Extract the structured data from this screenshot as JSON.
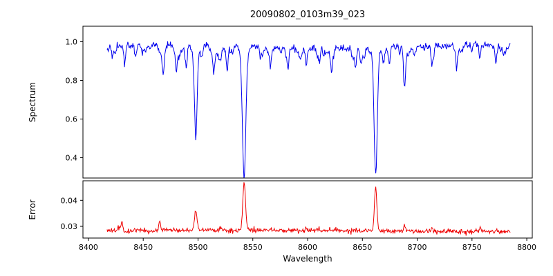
{
  "chart_data": {
    "type": "line",
    "title": "20090802_0103m39_023",
    "xlabel": "Wavelength",
    "xlim": [
      8395,
      8805
    ],
    "x_data_range": [
      8417,
      8785
    ],
    "xticks": [
      8400,
      8450,
      8500,
      8550,
      8600,
      8650,
      8700,
      8750,
      8800
    ],
    "xtick_labels": [
      "8400",
      "8450",
      "8500",
      "8550",
      "8600",
      "8650",
      "8700",
      "8750",
      "8800"
    ],
    "grid": false,
    "legend": "none",
    "panels": [
      {
        "name": "spectrum",
        "ylabel": "Spectrum",
        "ylim": [
          0.295,
          1.08
        ],
        "yticks": [
          0.4,
          0.6,
          0.8,
          1.0
        ],
        "ytick_labels": [
          "0.4",
          "0.6",
          "0.8",
          "1.0"
        ],
        "line_color": "#0000ee",
        "continuum": 0.975,
        "noise_sigma": 0.009,
        "weak_lines": {
          "count": 90,
          "depth_min": 0.005,
          "depth_max": 0.055,
          "sigma_min": 0.5,
          "sigma_max": 1.5
        },
        "absorption_lines": [
          {
            "center": 8424.5,
            "depth": 0.05,
            "sigma": 0.7
          },
          {
            "center": 8433.0,
            "depth": 0.1,
            "sigma": 0.8
          },
          {
            "center": 8443.0,
            "depth": 0.06,
            "sigma": 0.7
          },
          {
            "center": 8452.0,
            "depth": 0.05,
            "sigma": 0.7
          },
          {
            "center": 8468.5,
            "depth": 0.09,
            "sigma": 0.9
          },
          {
            "center": 8480.0,
            "depth": 0.05,
            "sigma": 0.7
          },
          {
            "center": 8498.0,
            "depth": 0.45,
            "sigma": 1.3
          },
          {
            "center": 8514.1,
            "depth": 0.09,
            "sigma": 0.8
          },
          {
            "center": 8526.7,
            "depth": 0.07,
            "sigma": 0.7
          },
          {
            "center": 8542.1,
            "depth": 0.635,
            "sigma": 1.6
          },
          {
            "center": 8556.8,
            "depth": 0.05,
            "sigma": 0.7
          },
          {
            "center": 8582.3,
            "depth": 0.08,
            "sigma": 0.8
          },
          {
            "center": 8598.8,
            "depth": 0.1,
            "sigma": 0.8
          },
          {
            "center": 8611.0,
            "depth": 0.06,
            "sigma": 0.7
          },
          {
            "center": 8621.6,
            "depth": 0.08,
            "sigma": 0.8
          },
          {
            "center": 8648.5,
            "depth": 0.06,
            "sigma": 0.7
          },
          {
            "center": 8662.1,
            "depth": 0.59,
            "sigma": 1.5
          },
          {
            "center": 8674.8,
            "depth": 0.07,
            "sigma": 0.7
          },
          {
            "center": 8688.6,
            "depth": 0.19,
            "sigma": 0.9
          },
          {
            "center": 8713.2,
            "depth": 0.08,
            "sigma": 0.8
          },
          {
            "center": 8736.0,
            "depth": 0.07,
            "sigma": 0.8
          },
          {
            "center": 8757.1,
            "depth": 0.07,
            "sigma": 0.7
          },
          {
            "center": 8772.0,
            "depth": 0.05,
            "sigma": 0.7
          }
        ]
      },
      {
        "name": "error",
        "ylabel": "Error",
        "ylim": [
          0.0255,
          0.0475
        ],
        "yticks": [
          0.03,
          0.04
        ],
        "ytick_labels": [
          "0.03",
          "0.04"
        ],
        "line_color": "#ee0000",
        "baseline": 0.0282,
        "noise_sigma": 0.00045,
        "bumps": [
          {
            "center": 8427.0,
            "height": 0.0018,
            "sigma": 0.6
          },
          {
            "center": 8430.5,
            "height": 0.004,
            "sigma": 0.8
          },
          {
            "center": 8465.0,
            "height": 0.0036,
            "sigma": 0.8
          },
          {
            "center": 8498.0,
            "height": 0.0072,
            "sigma": 1.2
          },
          {
            "center": 8521.0,
            "height": 0.0014,
            "sigma": 0.8
          },
          {
            "center": 8542.1,
            "height": 0.0185,
            "sigma": 1.2
          },
          {
            "center": 8598.8,
            "height": 0.0012,
            "sigma": 0.8
          },
          {
            "center": 8662.1,
            "height": 0.0168,
            "sigma": 1.1
          },
          {
            "center": 8688.6,
            "height": 0.002,
            "sigma": 0.9
          },
          {
            "center": 8713.2,
            "height": 0.0013,
            "sigma": 0.8
          },
          {
            "center": 8757.1,
            "height": 0.0013,
            "sigma": 0.8
          }
        ]
      }
    ]
  }
}
